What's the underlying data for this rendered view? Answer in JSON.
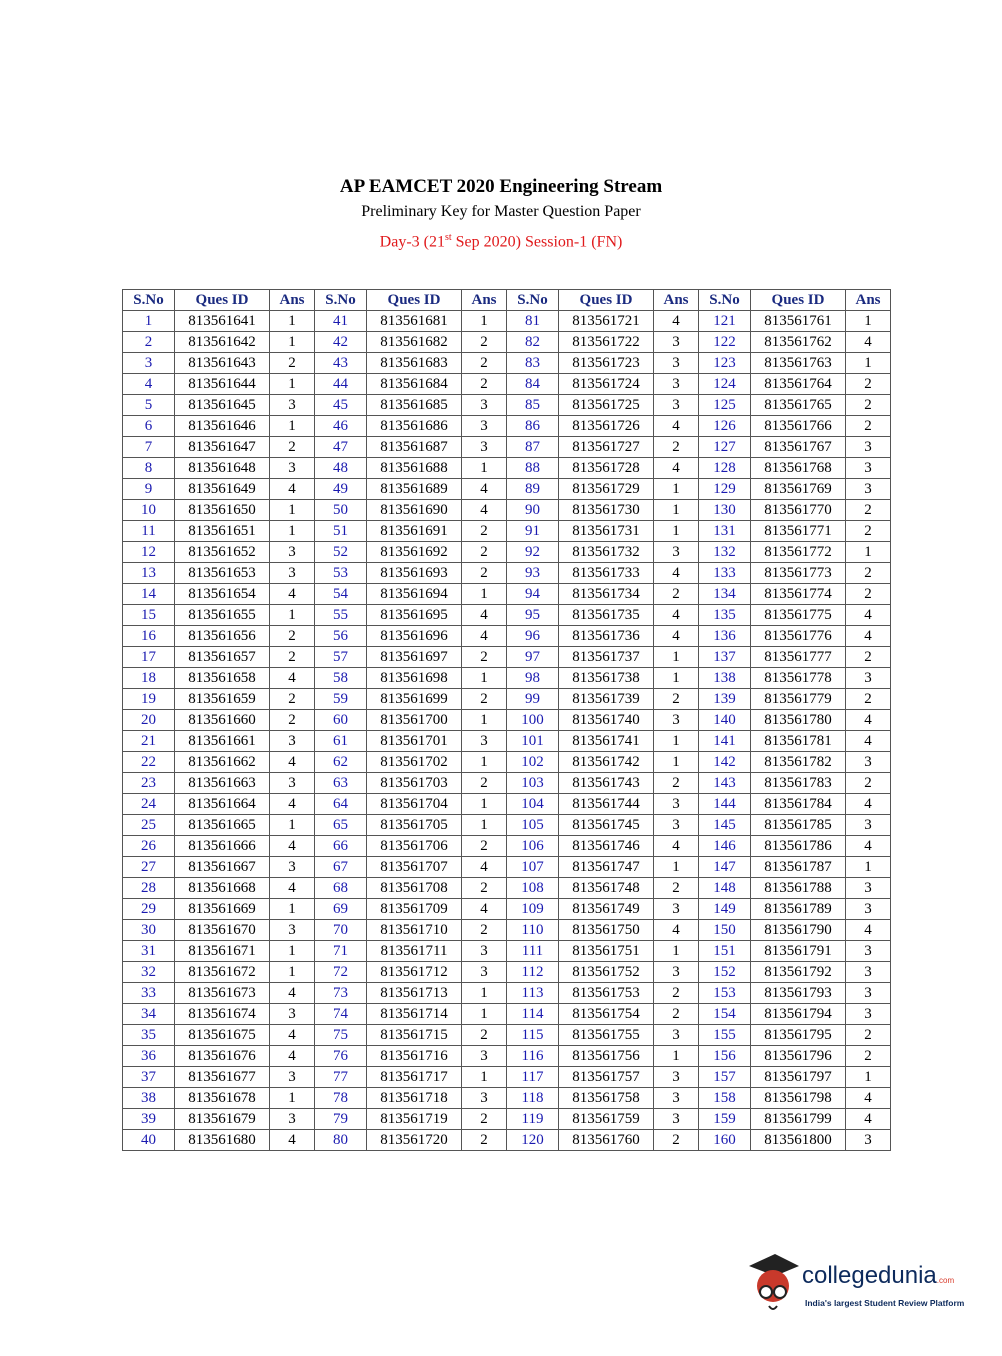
{
  "header": {
    "title": "AP EAMCET 2020 Engineering Stream",
    "subtitle": "Preliminary Key for Master Question Paper",
    "session": [
      "Day-3 (21",
      "st",
      " Sep 2020) Session-1 (FN)"
    ]
  },
  "table": {
    "columns": [
      "S.No",
      "Ques ID",
      "Ans",
      "S.No",
      "Ques ID",
      "Ans",
      "S.No",
      "Ques ID",
      "Ans",
      "S.No",
      "Ques ID",
      "Ans"
    ],
    "rows": [
      [
        1,
        813561641,
        1,
        41,
        813561681,
        1,
        81,
        813561721,
        4,
        121,
        813561761,
        1
      ],
      [
        2,
        813561642,
        1,
        42,
        813561682,
        2,
        82,
        813561722,
        3,
        122,
        813561762,
        4
      ],
      [
        3,
        813561643,
        2,
        43,
        813561683,
        2,
        83,
        813561723,
        3,
        123,
        813561763,
        1
      ],
      [
        4,
        813561644,
        1,
        44,
        813561684,
        2,
        84,
        813561724,
        3,
        124,
        813561764,
        2
      ],
      [
        5,
        813561645,
        3,
        45,
        813561685,
        3,
        85,
        813561725,
        3,
        125,
        813561765,
        2
      ],
      [
        6,
        813561646,
        1,
        46,
        813561686,
        3,
        86,
        813561726,
        4,
        126,
        813561766,
        2
      ],
      [
        7,
        813561647,
        2,
        47,
        813561687,
        3,
        87,
        813561727,
        2,
        127,
        813561767,
        3
      ],
      [
        8,
        813561648,
        3,
        48,
        813561688,
        1,
        88,
        813561728,
        4,
        128,
        813561768,
        3
      ],
      [
        9,
        813561649,
        4,
        49,
        813561689,
        4,
        89,
        813561729,
        1,
        129,
        813561769,
        3
      ],
      [
        10,
        813561650,
        1,
        50,
        813561690,
        4,
        90,
        813561730,
        1,
        130,
        813561770,
        2
      ],
      [
        11,
        813561651,
        1,
        51,
        813561691,
        2,
        91,
        813561731,
        1,
        131,
        813561771,
        2
      ],
      [
        12,
        813561652,
        3,
        52,
        813561692,
        2,
        92,
        813561732,
        3,
        132,
        813561772,
        1
      ],
      [
        13,
        813561653,
        3,
        53,
        813561693,
        2,
        93,
        813561733,
        4,
        133,
        813561773,
        2
      ],
      [
        14,
        813561654,
        4,
        54,
        813561694,
        1,
        94,
        813561734,
        2,
        134,
        813561774,
        2
      ],
      [
        15,
        813561655,
        1,
        55,
        813561695,
        4,
        95,
        813561735,
        4,
        135,
        813561775,
        4
      ],
      [
        16,
        813561656,
        2,
        56,
        813561696,
        4,
        96,
        813561736,
        4,
        136,
        813561776,
        4
      ],
      [
        17,
        813561657,
        2,
        57,
        813561697,
        2,
        97,
        813561737,
        1,
        137,
        813561777,
        2
      ],
      [
        18,
        813561658,
        4,
        58,
        813561698,
        1,
        98,
        813561738,
        1,
        138,
        813561778,
        3
      ],
      [
        19,
        813561659,
        2,
        59,
        813561699,
        2,
        99,
        813561739,
        2,
        139,
        813561779,
        2
      ],
      [
        20,
        813561660,
        2,
        60,
        813561700,
        1,
        100,
        813561740,
        3,
        140,
        813561780,
        4
      ],
      [
        21,
        813561661,
        3,
        61,
        813561701,
        3,
        101,
        813561741,
        1,
        141,
        813561781,
        4
      ],
      [
        22,
        813561662,
        4,
        62,
        813561702,
        1,
        102,
        813561742,
        1,
        142,
        813561782,
        3
      ],
      [
        23,
        813561663,
        3,
        63,
        813561703,
        2,
        103,
        813561743,
        2,
        143,
        813561783,
        2
      ],
      [
        24,
        813561664,
        4,
        64,
        813561704,
        1,
        104,
        813561744,
        3,
        144,
        813561784,
        4
      ],
      [
        25,
        813561665,
        1,
        65,
        813561705,
        1,
        105,
        813561745,
        3,
        145,
        813561785,
        3
      ],
      [
        26,
        813561666,
        4,
        66,
        813561706,
        2,
        106,
        813561746,
        4,
        146,
        813561786,
        4
      ],
      [
        27,
        813561667,
        3,
        67,
        813561707,
        4,
        107,
        813561747,
        1,
        147,
        813561787,
        1
      ],
      [
        28,
        813561668,
        4,
        68,
        813561708,
        2,
        108,
        813561748,
        2,
        148,
        813561788,
        3
      ],
      [
        29,
        813561669,
        1,
        69,
        813561709,
        4,
        109,
        813561749,
        3,
        149,
        813561789,
        3
      ],
      [
        30,
        813561670,
        3,
        70,
        813561710,
        2,
        110,
        813561750,
        4,
        150,
        813561790,
        4
      ],
      [
        31,
        813561671,
        1,
        71,
        813561711,
        3,
        111,
        813561751,
        1,
        151,
        813561791,
        3
      ],
      [
        32,
        813561672,
        1,
        72,
        813561712,
        3,
        112,
        813561752,
        3,
        152,
        813561792,
        3
      ],
      [
        33,
        813561673,
        4,
        73,
        813561713,
        1,
        113,
        813561753,
        2,
        153,
        813561793,
        3
      ],
      [
        34,
        813561674,
        3,
        74,
        813561714,
        1,
        114,
        813561754,
        2,
        154,
        813561794,
        3
      ],
      [
        35,
        813561675,
        4,
        75,
        813561715,
        2,
        115,
        813561755,
        3,
        155,
        813561795,
        2
      ],
      [
        36,
        813561676,
        4,
        76,
        813561716,
        3,
        116,
        813561756,
        1,
        156,
        813561796,
        2
      ],
      [
        37,
        813561677,
        3,
        77,
        813561717,
        1,
        117,
        813561757,
        3,
        157,
        813561797,
        1
      ],
      [
        38,
        813561678,
        1,
        78,
        813561718,
        3,
        118,
        813561758,
        3,
        158,
        813561798,
        4
      ],
      [
        39,
        813561679,
        3,
        79,
        813561719,
        2,
        119,
        813561759,
        3,
        159,
        813561799,
        4
      ],
      [
        40,
        813561680,
        4,
        80,
        813561720,
        2,
        120,
        813561760,
        2,
        160,
        813561800,
        3
      ]
    ]
  },
  "logo": {
    "name": "collegedunia",
    "suffix": ".com",
    "tagline": "India's largest Student Review Platform"
  }
}
